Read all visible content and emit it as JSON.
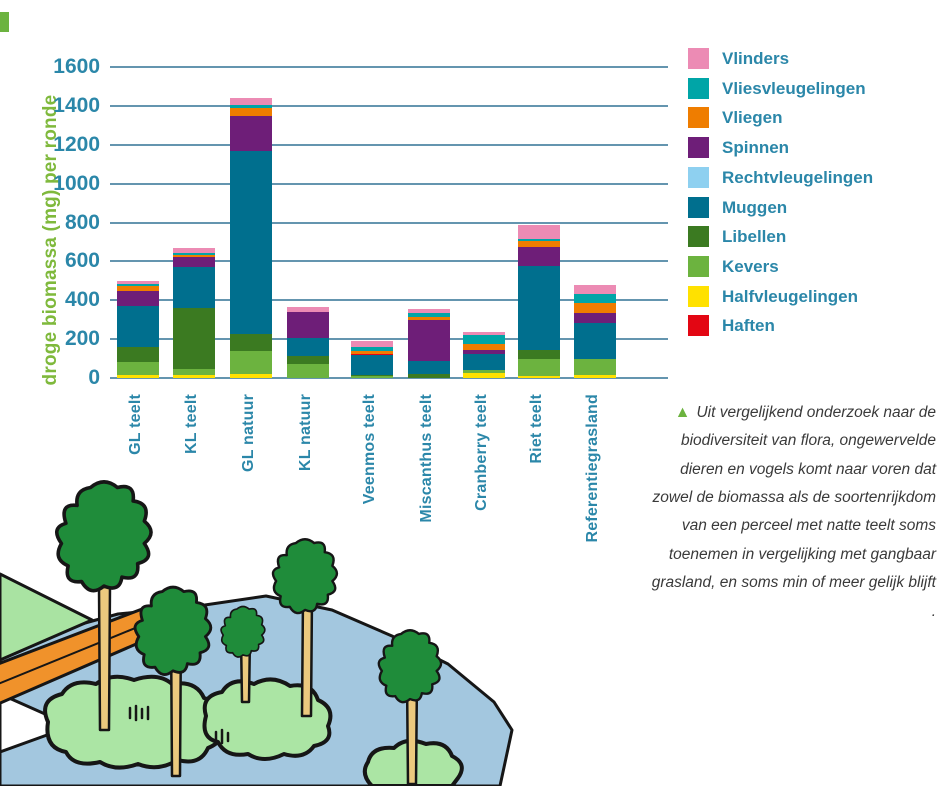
{
  "corner_mark_color": "#6CB33F",
  "colors": {
    "axis_text": "#2B87A9",
    "gridline": "#6495AF",
    "y_title_green": "#7FB93C",
    "annotation_triangle_green": "#6CB33F"
  },
  "chart_data": {
    "type": "bar",
    "stacked": true,
    "title": "",
    "xlabel": "",
    "ylabel": "droge biomassa (mg) per ronde",
    "ylim": [
      0,
      1600
    ],
    "yticks": [
      0,
      200,
      400,
      600,
      800,
      1000,
      1200,
      1400,
      1600
    ],
    "grid": true,
    "legend_position": "right",
    "categories": [
      "GL teelt",
      "KL teelt",
      "GL natuur",
      "KL natuur",
      "Veenmos teelt",
      "Miscanthus teelt",
      "Cranberry teelt",
      "Riet teelt",
      "Referentiegrasland"
    ],
    "palette": {
      "Vlinders": "#EC8BB4",
      "Vliesvleugelingen": "#00A5A7",
      "Vliegen": "#EF7D00",
      "Spinnen": "#6E1E78",
      "Rechtvleugelingen": "#8ED0F0",
      "Muggen": "#006F8E",
      "Libellen": "#3B7A21",
      "Kevers": "#6CB33F",
      "Halfvleugelingen": "#FFE100",
      "Haften": "#E30613"
    },
    "series": [
      {
        "name": "Halfvleugelingen",
        "values": [
          15,
          15,
          20,
          0,
          0,
          0,
          25,
          10,
          15
        ]
      },
      {
        "name": "Kevers",
        "values": [
          65,
          30,
          120,
          70,
          8,
          0,
          15,
          90,
          85
        ]
      },
      {
        "name": "Libellen",
        "values": [
          80,
          315,
          85,
          45,
          8,
          20,
          0,
          45,
          0
        ]
      },
      {
        "name": "Muggen",
        "values": [
          210,
          210,
          945,
          90,
          100,
          70,
          85,
          430,
          185
        ]
      },
      {
        "name": "Haften",
        "values": [
          0,
          0,
          0,
          0,
          10,
          0,
          0,
          0,
          0
        ]
      },
      {
        "name": "Rechtvleugelingen",
        "values": [
          0,
          0,
          0,
          0,
          0,
          0,
          0,
          0,
          0
        ]
      },
      {
        "name": "Spinnen",
        "values": [
          80,
          55,
          180,
          135,
          0,
          210,
          20,
          100,
          50
        ]
      },
      {
        "name": "Vliegen",
        "values": [
          25,
          8,
          40,
          0,
          12,
          12,
          30,
          30,
          50
        ]
      },
      {
        "name": "Vliesvleugelingen",
        "values": [
          10,
          12,
          12,
          0,
          22,
          20,
          45,
          10,
          45
        ]
      },
      {
        "name": "Vlinders",
        "values": [
          15,
          25,
          38,
          25,
          30,
          23,
          15,
          70,
          50
        ]
      }
    ],
    "legend_order": [
      "Vlinders",
      "Vliesvleugelingen",
      "Vliegen",
      "Spinnen",
      "Rechtvleugelingen",
      "Muggen",
      "Libellen",
      "Kevers",
      "Halfvleugelingen",
      "Haften"
    ]
  },
  "annotation": {
    "marker": "▲",
    "text": "Uit vergelijkend onderzoek naar de biodiversiteit van flora, ongewervelde dieren en vogels komt naar voren dat zowel de biomassa als de soortenrijkdom van een perceel met natte teelt soms toenemen in vergelijking met gangbaar grasland, en soms min of meer gelijk blijft ."
  }
}
